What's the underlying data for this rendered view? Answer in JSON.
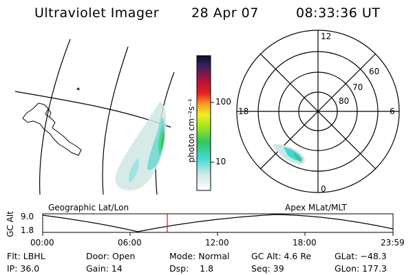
{
  "header": {
    "instrument": "Ultraviolet Imager",
    "date": "28 Apr 07",
    "time": "08:33:36 UT"
  },
  "colorbar": {
    "label": "photon cm⁻²s⁻¹",
    "ticks": [
      "100",
      "10"
    ]
  },
  "polar_plot": {
    "mlt_labels": [
      "12",
      "18",
      "6",
      "0"
    ],
    "lat_labels": [
      "60",
      "70",
      "80"
    ]
  },
  "panel_labels": {
    "geographic": "Geographic Lat/Lon",
    "apex": "Apex MLat/MLT"
  },
  "altitude_plot": {
    "axis_label": "GC Alt",
    "y_ticks": [
      "9.0",
      "1.8"
    ],
    "x_ticks": [
      "00:00",
      "06:00",
      "12:00",
      "18:00",
      "23:59"
    ],
    "marker_time": "08:33",
    "marker_color": "#ff0000"
  },
  "info": {
    "flt": "Flt: LBHL",
    "ip": "IP: 36.0",
    "door": "Door: Open",
    "gain": "Gain: 14",
    "mode": "Mode: Normal",
    "dsp": "Dsp:    1.8",
    "gc_alt": "GC Alt: 4.6 Re",
    "seq": "Seq: 39",
    "glat": "GLat: −48.3",
    "glon": "GLon: 177.3"
  }
}
